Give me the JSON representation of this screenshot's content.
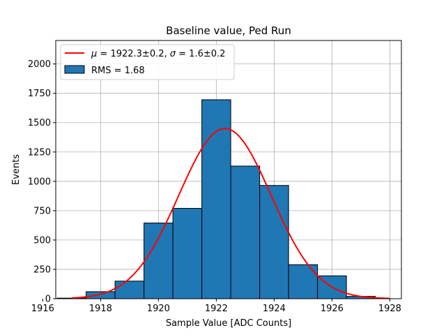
{
  "chart_data": {
    "type": "bar",
    "title": "Baseline value, Ped Run",
    "xlabel": "Sample Value [ADC Counts]",
    "ylabel": "Events",
    "xlim": [
      1916.45,
      1928.4
    ],
    "ylim": [
      0,
      2200
    ],
    "xticks": [
      1916,
      1918,
      1920,
      1922,
      1924,
      1926,
      1928
    ],
    "yticks": [
      0,
      250,
      500,
      750,
      1000,
      1250,
      1500,
      1750,
      2000
    ],
    "grid": true,
    "legend_position": "top-left",
    "bin_edges": [
      1916.5,
      1917.5,
      1918.5,
      1919.5,
      1920.5,
      1921.5,
      1922.5,
      1923.5,
      1924.5,
      1925.5,
      1926.5,
      1927.5
    ],
    "counts": [
      5,
      60,
      150,
      645,
      770,
      1695,
      1130,
      965,
      290,
      195,
      20
    ],
    "bar_color": "#1f77b4",
    "fit": {
      "mu": 1922.3,
      "sigma": 1.6,
      "amplitude": 1450,
      "x_range": [
        1917,
        1928
      ],
      "color": "#ff0000"
    },
    "legend": {
      "fit_label_prefix": "μ",
      "fit_label_mu": " = 1922.3±0.2, ",
      "fit_label_sigma_symbol": "σ",
      "fit_label_sigma": " = 1.6±0.2",
      "hist_label": "RMS = 1.68"
    }
  }
}
